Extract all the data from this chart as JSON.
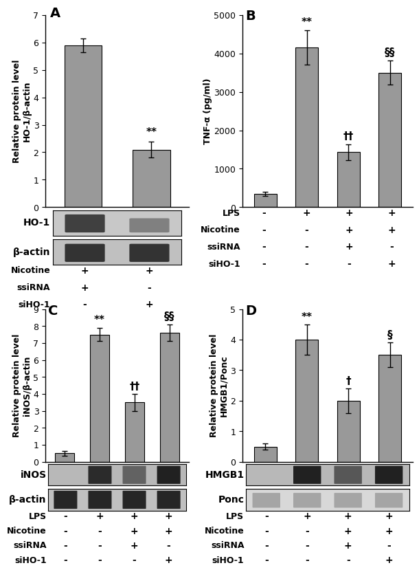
{
  "panel_A": {
    "bars": [
      5.9,
      2.1
    ],
    "errors": [
      0.25,
      0.3
    ],
    "ylim": [
      0,
      7
    ],
    "yticks": [
      0,
      1,
      2,
      3,
      4,
      5,
      6,
      7
    ],
    "ylabel": "Relative protein level\nHO-1/β-actin",
    "label": "A",
    "blot_labels": [
      "HO-1",
      "β-actin"
    ],
    "row_labels": [
      "Nicotine",
      "ssiRNA",
      "siHO-1"
    ],
    "col_signs": [
      [
        "+",
        "+"
      ],
      [
        "+",
        "-"
      ],
      [
        "-",
        "+"
      ]
    ]
  },
  "panel_B": {
    "bars": [
      350,
      4150,
      1430,
      3500
    ],
    "errors": [
      50,
      450,
      200,
      320
    ],
    "ylim": [
      0,
      5000
    ],
    "yticks": [
      0,
      1000,
      2000,
      3000,
      4000,
      5000
    ],
    "ylabel": "TNF-α (pg/ml)",
    "label": "B",
    "annot_texts": [
      "**",
      "††",
      "§§"
    ],
    "annot_bars": [
      1,
      2,
      3
    ],
    "row_labels": [
      "LPS",
      "Nicotine",
      "ssiRNA",
      "siHO-1"
    ],
    "col_signs": [
      [
        "-",
        "+",
        "+",
        "+"
      ],
      [
        "-",
        "-",
        "+",
        "+"
      ],
      [
        "-",
        "-",
        "+",
        "-"
      ],
      [
        "-",
        "-",
        "-",
        "+"
      ]
    ]
  },
  "panel_C": {
    "bars": [
      0.5,
      7.5,
      3.5,
      7.6
    ],
    "errors": [
      0.15,
      0.4,
      0.5,
      0.5
    ],
    "ylim": [
      0,
      9
    ],
    "yticks": [
      0,
      1,
      2,
      3,
      4,
      5,
      6,
      7,
      8,
      9
    ],
    "ylabel": "Relative protein level\niNOS/β-actin",
    "label": "C",
    "annot_texts": [
      "**",
      "††",
      "§§"
    ],
    "annot_bars": [
      1,
      2,
      3
    ],
    "blot_labels": [
      "iNOS",
      "β-actin"
    ],
    "row_labels": [
      "LPS",
      "Nicotine",
      "ssiRNA",
      "siHO-1"
    ],
    "col_signs": [
      [
        "-",
        "+",
        "+",
        "+"
      ],
      [
        "-",
        "-",
        "+",
        "+"
      ],
      [
        "-",
        "-",
        "+",
        "-"
      ],
      [
        "-",
        "-",
        "-",
        "+"
      ]
    ]
  },
  "panel_D": {
    "bars": [
      0.5,
      4.0,
      2.0,
      3.5
    ],
    "errors": [
      0.1,
      0.5,
      0.4,
      0.4
    ],
    "ylim": [
      0,
      5
    ],
    "yticks": [
      0,
      1,
      2,
      3,
      4,
      5
    ],
    "ylabel": "Relative protein level\nHMGB1/Ponc",
    "label": "D",
    "annot_texts": [
      "**",
      "†",
      "§"
    ],
    "annot_bars": [
      1,
      2,
      3
    ],
    "blot_labels": [
      "HMGB1",
      "Ponc"
    ],
    "row_labels": [
      "LPS",
      "Nicotine",
      "ssiRNA",
      "siHO-1"
    ],
    "col_signs": [
      [
        "-",
        "+",
        "+",
        "+"
      ],
      [
        "-",
        "-",
        "+",
        "+"
      ],
      [
        "-",
        "-",
        "+",
        "-"
      ],
      [
        "-",
        "-",
        "-",
        "+"
      ]
    ]
  },
  "bar_width": 0.55,
  "bar_color": "#999999",
  "tick_fontsize": 9,
  "ylabel_fontsize": 9,
  "annot_fontsize": 11,
  "panel_label_fontsize": 14,
  "blot_label_fontsize": 10,
  "row_label_fontsize": 9,
  "sign_fontsize": 10
}
